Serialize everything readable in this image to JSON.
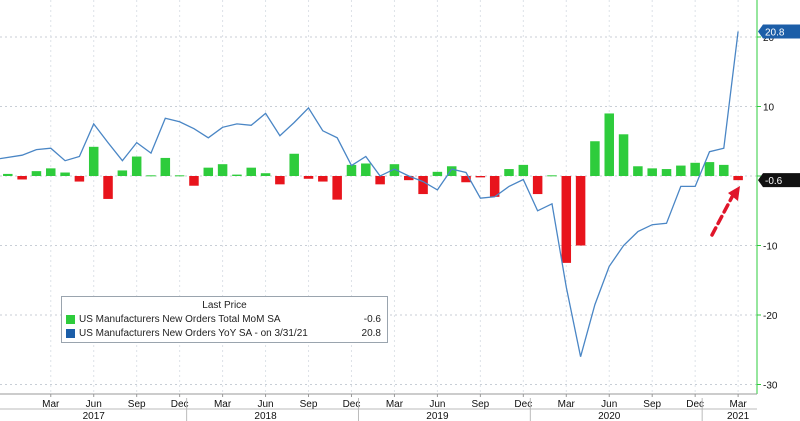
{
  "chart_data": {
    "type": "bar+line",
    "title": "",
    "xlabel": "",
    "ylabel": "",
    "ylim": [
      -30,
      25
    ],
    "y_ticks": [
      20,
      10,
      0,
      -10,
      -20,
      -30
    ],
    "y_tick_labels": [
      "20",
      "10",
      "",
      "-10",
      "-20",
      "-30"
    ],
    "x_tick_labels": [
      "Mar",
      "Jun",
      "Sep",
      "Dec",
      "Mar",
      "Jun",
      "Sep",
      "Dec",
      "Mar",
      "Jun",
      "Sep",
      "Dec",
      "Mar",
      "Jun",
      "Sep",
      "Dec",
      "Mar"
    ],
    "year_labels": [
      "2017",
      "2018",
      "2019",
      "2020",
      "2021"
    ],
    "x_range": [
      "2016-12",
      "2021-04"
    ],
    "grid": true,
    "colors": {
      "positive": "#2ecc3c",
      "negative": "#e8141c",
      "line": "#4a86c5",
      "arrow": "#e0152a",
      "yoy_tag": "#1c5ea8",
      "mom_tag": "#111111"
    },
    "series": [
      {
        "name": "US Manufacturers New Orders Total MoM SA",
        "kind": "bar",
        "x": [
          "2016-12",
          "2017-01",
          "2017-02",
          "2017-03",
          "2017-04",
          "2017-05",
          "2017-06",
          "2017-07",
          "2017-08",
          "2017-09",
          "2017-10",
          "2017-11",
          "2017-12",
          "2018-01",
          "2018-02",
          "2018-03",
          "2018-04",
          "2018-05",
          "2018-06",
          "2018-07",
          "2018-08",
          "2018-09",
          "2018-10",
          "2018-11",
          "2018-12",
          "2019-01",
          "2019-02",
          "2019-03",
          "2019-04",
          "2019-05",
          "2019-06",
          "2019-07",
          "2019-08",
          "2019-09",
          "2019-10",
          "2019-11",
          "2019-12",
          "2020-01",
          "2020-02",
          "2020-03",
          "2020-04",
          "2020-05",
          "2020-06",
          "2020-07",
          "2020-08",
          "2020-09",
          "2020-10",
          "2020-11",
          "2020-12",
          "2021-01",
          "2021-02",
          "2021-03"
        ],
        "values": [
          0.3,
          -0.5,
          0.7,
          1.1,
          0.5,
          -0.8,
          4.2,
          -3.3,
          0.8,
          2.8,
          0.1,
          2.6,
          0.1,
          -1.4,
          1.2,
          1.7,
          0.2,
          1.2,
          0.4,
          -1.2,
          3.2,
          -0.4,
          -0.8,
          -3.4,
          1.6,
          1.8,
          -1.2,
          1.7,
          -0.6,
          -2.6,
          0.6,
          1.4,
          -0.9,
          -0.2,
          -3.0,
          1.0,
          1.6,
          -2.6,
          0.1,
          -12.5,
          -10.0,
          5.0,
          9.0,
          6.0,
          1.4,
          1.1,
          1.0,
          1.5,
          1.9,
          2.0,
          1.6,
          -0.6
        ]
      },
      {
        "name": "US Manufacturers New Orders YoY SA - on 3/31/21",
        "kind": "line",
        "x": [
          "2016-12",
          "2017-01",
          "2017-02",
          "2017-03",
          "2017-04",
          "2017-05",
          "2017-06",
          "2017-07",
          "2017-08",
          "2017-09",
          "2017-10",
          "2017-11",
          "2017-12",
          "2018-01",
          "2018-02",
          "2018-03",
          "2018-04",
          "2018-05",
          "2018-06",
          "2018-07",
          "2018-08",
          "2018-09",
          "2018-10",
          "2018-11",
          "2018-12",
          "2019-01",
          "2019-02",
          "2019-03",
          "2019-04",
          "2019-05",
          "2019-06",
          "2019-07",
          "2019-08",
          "2019-09",
          "2019-10",
          "2019-11",
          "2019-12",
          "2020-01",
          "2020-02",
          "2020-03",
          "2020-04",
          "2020-05",
          "2020-06",
          "2020-07",
          "2020-08",
          "2020-09",
          "2020-10",
          "2020-11",
          "2020-12",
          "2021-01",
          "2021-02",
          "2021-03"
        ],
        "values": [
          2.5,
          3.0,
          3.8,
          4.0,
          2.2,
          2.8,
          7.5,
          4.8,
          2.2,
          4.8,
          3.3,
          8.3,
          7.8,
          6.8,
          5.5,
          7.0,
          7.5,
          7.3,
          9.0,
          5.8,
          7.7,
          9.8,
          6.5,
          5.5,
          1.5,
          2.8,
          0.0,
          1.0,
          0.0,
          -0.8,
          -2.0,
          1.0,
          0.5,
          -3.2,
          -3.0,
          -1.5,
          -0.5,
          -5.0,
          -4.0,
          -16.0,
          -26.0,
          -18.5,
          -13.0,
          -10.0,
          -8.0,
          -7.0,
          -6.8,
          -1.5,
          -1.5,
          3.5,
          4.0,
          20.8
        ]
      }
    ],
    "annotations": {
      "last_yoy": "20.8",
      "last_mom": "-0.6"
    }
  },
  "legend": {
    "title": "Last Price",
    "rows": [
      {
        "label": "US Manufacturers New Orders Total MoM SA",
        "value": "-0.6",
        "color": "#2ecc3c"
      },
      {
        "label": "US Manufacturers New Orders YoY SA - on 3/31/21",
        "value": "20.8",
        "color": "#1c5ea8"
      }
    ]
  }
}
